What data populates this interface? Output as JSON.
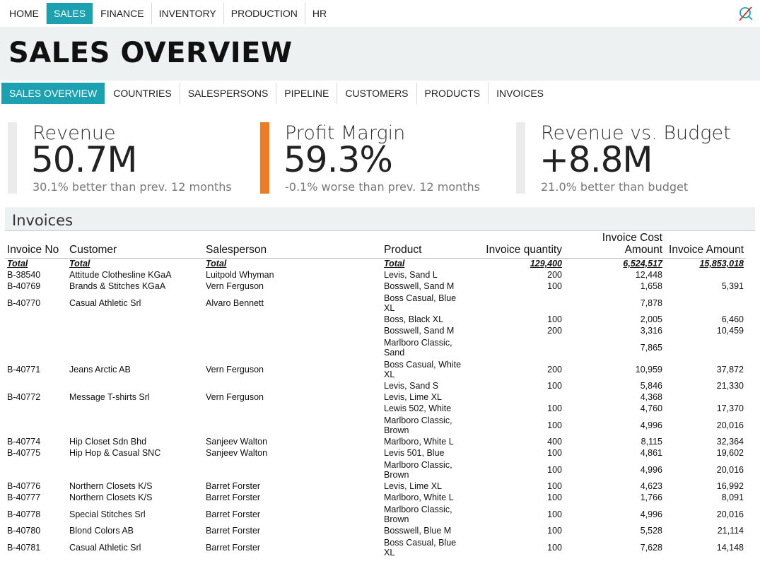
{
  "nav": {
    "items": [
      "HOME",
      "SALES",
      "FINANCE",
      "INVENTORY",
      "PRODUCTION",
      "HR"
    ],
    "active": 1
  },
  "page_title": "SALES OVERVIEW",
  "subnav": {
    "items": [
      "SALES OVERVIEW",
      "COUNTRIES",
      "SALESPERSONS",
      "PIPELINE",
      "CUSTOMERS",
      "PRODUCTS",
      "INVOICES"
    ],
    "active": 0
  },
  "kpis": [
    {
      "label": "Revenue",
      "value": "50.7M",
      "sub": "30.1% better than prev. 12 months",
      "accent": "#ebebeb"
    },
    {
      "label": "Profit Margin",
      "value": "59.3%",
      "sub": "-0.1% worse than prev. 12 months",
      "accent": "#ec7c22"
    },
    {
      "label": "Revenue vs. Budget",
      "value": "+8.8M",
      "sub": "21.0% better than budget",
      "accent": "#ebebeb"
    }
  ],
  "invoices": {
    "title": "Invoices",
    "columns": [
      "Invoice No",
      "Customer",
      "Salesperson",
      "Product",
      "Invoice quantity",
      "Invoice Cost Amount",
      "Invoice Amount"
    ],
    "total": {
      "invoice": "Total",
      "customer": "Total",
      "salesperson": "Total",
      "product": "Total",
      "qty": "129,400",
      "cost": "6,524,517",
      "amount": "15,853,018"
    },
    "rows": [
      {
        "invoice": "B-38540",
        "customer": "Attitude Clothesline KGaA",
        "salesperson": "Luitpold Whyman",
        "product": "Levis, Sand L",
        "qty": "200",
        "cost": "12,448",
        "amount": ""
      },
      {
        "invoice": "B-40769",
        "customer": "Brands & Stitches KGaA",
        "salesperson": "Vern Ferguson",
        "product": "Bosswell, Sand M",
        "qty": "100",
        "cost": "1,658",
        "amount": "5,391"
      },
      {
        "invoice": "B-40770",
        "customer": "Casual Athletic Srl",
        "salesperson": "Alvaro Bennett",
        "product": "Boss Casual, Blue XL",
        "qty": "",
        "cost": "7,878",
        "amount": ""
      },
      {
        "invoice": "",
        "customer": "",
        "salesperson": "",
        "product": "Boss, Black XL",
        "qty": "100",
        "cost": "2,005",
        "amount": "6,460"
      },
      {
        "invoice": "",
        "customer": "",
        "salesperson": "",
        "product": "Bosswell, Sand M",
        "qty": "200",
        "cost": "3,316",
        "amount": "10,459"
      },
      {
        "invoice": "",
        "customer": "",
        "salesperson": "",
        "product": "Marlboro Classic, Sand",
        "qty": "",
        "cost": "7,865",
        "amount": ""
      },
      {
        "invoice": "B-40771",
        "customer": "Jeans Arctic AB",
        "salesperson": "Vern Ferguson",
        "product": "Boss Casual, White XL",
        "qty": "200",
        "cost": "10,959",
        "amount": "37,872"
      },
      {
        "invoice": "",
        "customer": "",
        "salesperson": "",
        "product": "Levis, Sand S",
        "qty": "100",
        "cost": "5,846",
        "amount": "21,330"
      },
      {
        "invoice": "B-40772",
        "customer": "Message T-shirts Srl",
        "salesperson": "Vern Ferguson",
        "product": "Levis, Lime XL",
        "qty": "",
        "cost": "4,368",
        "amount": ""
      },
      {
        "invoice": "",
        "customer": "",
        "salesperson": "",
        "product": "Lewis 502, White",
        "qty": "100",
        "cost": "4,760",
        "amount": "17,370"
      },
      {
        "invoice": "",
        "customer": "",
        "salesperson": "",
        "product": "Marlboro Classic, Brown",
        "qty": "100",
        "cost": "4,996",
        "amount": "20,016"
      },
      {
        "invoice": "B-40774",
        "customer": "Hip Closet Sdn Bhd",
        "salesperson": "Sanjeev Walton",
        "product": "Marlboro, White L",
        "qty": "400",
        "cost": "8,115",
        "amount": "32,364"
      },
      {
        "invoice": "B-40775",
        "customer": "Hip Hop & Casual SNC",
        "salesperson": "Sanjeev Walton",
        "product": "Levis 501, Blue",
        "qty": "100",
        "cost": "4,861",
        "amount": "19,602"
      },
      {
        "invoice": "",
        "customer": "",
        "salesperson": "",
        "product": "Marlboro Classic, Brown",
        "qty": "100",
        "cost": "4,996",
        "amount": "20,016"
      },
      {
        "invoice": "B-40776",
        "customer": "Northern Closets K/S",
        "salesperson": "Barret Forster",
        "product": "Levis, Lime XL",
        "qty": "100",
        "cost": "4,623",
        "amount": "16,992"
      },
      {
        "invoice": "B-40777",
        "customer": "Northern Closets K/S",
        "salesperson": "Barret Forster",
        "product": "Marlboro, White L",
        "qty": "100",
        "cost": "1,766",
        "amount": "8,091"
      },
      {
        "invoice": "B-40778",
        "customer": "Special Stitches Srl",
        "salesperson": "Barret Forster",
        "product": "Marlboro Classic, Brown",
        "qty": "100",
        "cost": "4,996",
        "amount": "20,016"
      },
      {
        "invoice": "B-40780",
        "customer": "Blond Colors AB",
        "salesperson": "Barret Forster",
        "product": "Bosswell, Blue M",
        "qty": "100",
        "cost": "5,528",
        "amount": "21,114"
      },
      {
        "invoice": "B-40781",
        "customer": "Casual Athletic Srl",
        "salesperson": "Barret Forster",
        "product": "Boss Casual, Blue XL",
        "qty": "100",
        "cost": "7,628",
        "amount": "14,148"
      }
    ]
  },
  "colors": {
    "accent": "#1ba1b0",
    "orange": "#ec7c22",
    "band": "#eef1f2"
  },
  "icons": {
    "app_logo": "magnifier-slash-icon"
  }
}
